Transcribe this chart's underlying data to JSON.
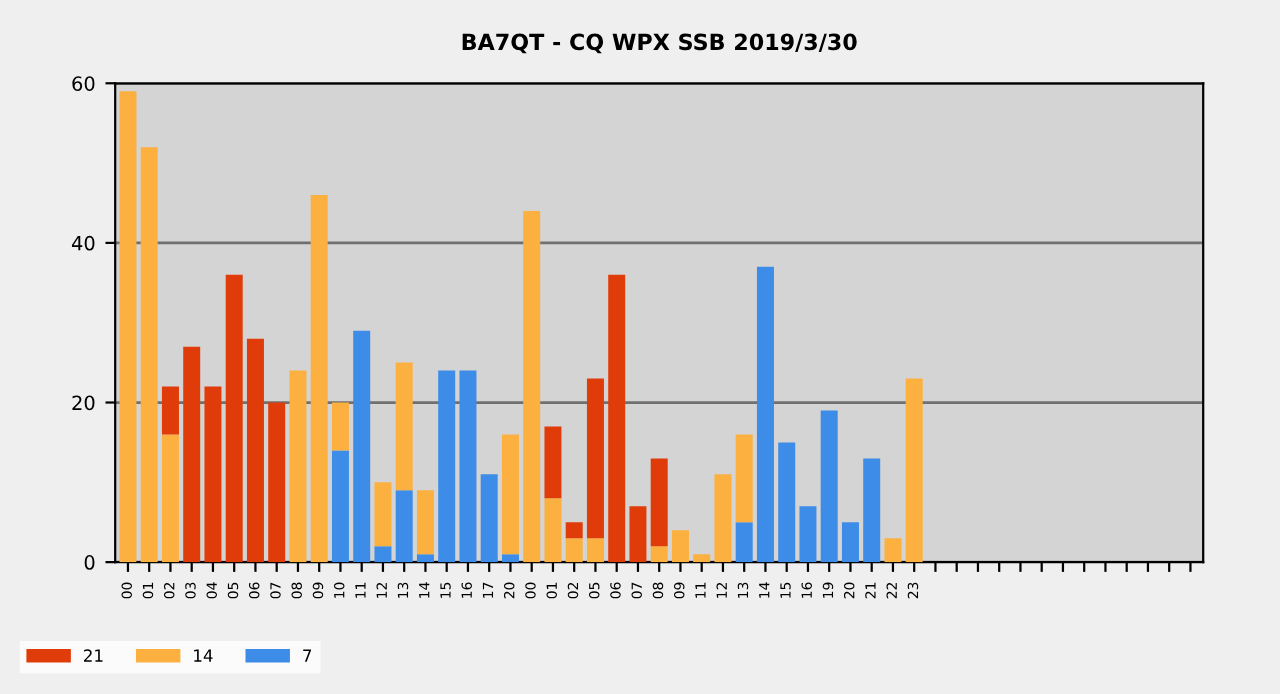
{
  "chart_data": {
    "type": "bar",
    "title": "BA7QT - CQ WPX SSB 2019/3/30",
    "stacked": true,
    "categories": [
      "00",
      "01",
      "02",
      "03",
      "04",
      "05",
      "06",
      "07",
      "08",
      "09",
      "10",
      "11",
      "12",
      "13",
      "14",
      "15",
      "16",
      "17",
      "20",
      "00",
      "01",
      "02",
      "05",
      "06",
      "07",
      "08",
      "09",
      "11",
      "12",
      "13",
      "14",
      "15",
      "16",
      "19",
      "20",
      "21",
      "22",
      "23",
      null,
      null,
      null,
      null,
      null,
      null,
      null,
      null,
      null,
      null,
      null,
      null,
      null
    ],
    "series": [
      {
        "name": "7",
        "color": "#3d8ce8",
        "values": [
          0,
          0,
          0,
          0,
          0,
          0,
          0,
          0,
          0,
          0,
          14,
          29,
          2,
          9,
          1,
          24,
          24,
          11,
          1,
          0,
          0,
          0,
          0,
          0,
          0,
          0,
          0,
          0,
          0,
          5,
          37,
          15,
          7,
          19,
          5,
          13,
          0,
          0,
          null,
          null,
          null,
          null,
          null,
          null,
          null,
          null,
          null,
          null,
          null,
          null,
          null
        ]
      },
      {
        "name": "14",
        "color": "#fbb040",
        "values": [
          59,
          52,
          16,
          0,
          0,
          0,
          0,
          0,
          24,
          46,
          6,
          0,
          8,
          16,
          8,
          0,
          0,
          0,
          15,
          44,
          8,
          3,
          3,
          0,
          0,
          2,
          4,
          1,
          11,
          11,
          0,
          0,
          0,
          0,
          0,
          0,
          3,
          23,
          null,
          null,
          null,
          null,
          null,
          null,
          null,
          null,
          null,
          null,
          null,
          null,
          null
        ]
      },
      {
        "name": "21",
        "color": "#e03c0a",
        "values": [
          0,
          0,
          6,
          27,
          22,
          36,
          28,
          20,
          0,
          0,
          0,
          0,
          0,
          0,
          0,
          0,
          0,
          0,
          0,
          0,
          9,
          2,
          20,
          36,
          7,
          11,
          0,
          0,
          0,
          0,
          0,
          0,
          0,
          0,
          0,
          0,
          0,
          0,
          null,
          null,
          null,
          null,
          null,
          null,
          null,
          null,
          null,
          null,
          null,
          null,
          null
        ]
      }
    ],
    "ylim": [
      0,
      60
    ],
    "yticks": [
      0,
      20,
      40,
      60
    ],
    "grid": "y",
    "legend": "bottom left"
  }
}
